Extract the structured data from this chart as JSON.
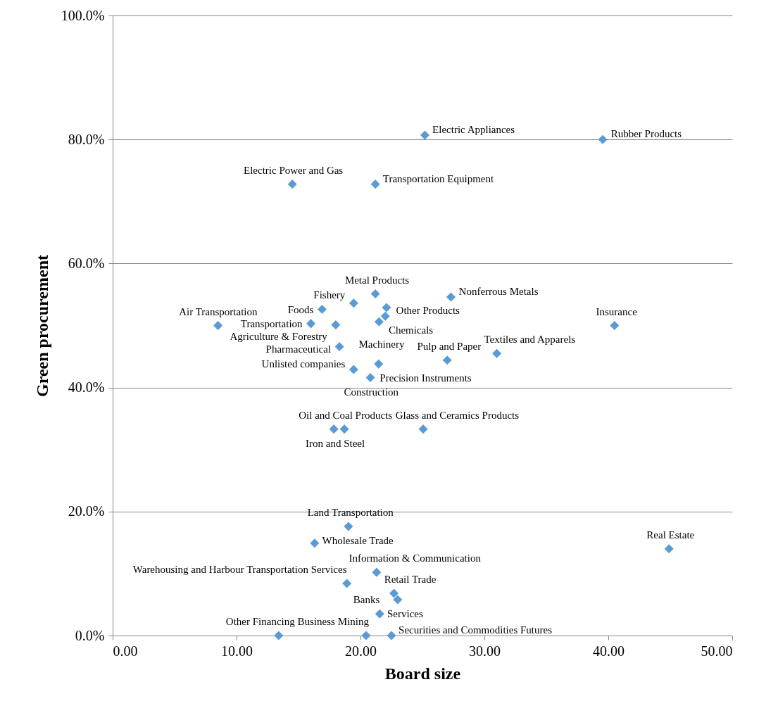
{
  "chart_data": {
    "type": "scatter",
    "xlabel": "Board size",
    "ylabel": "Green procurement",
    "x": [
      25.2,
      39.55,
      14.5,
      21.2,
      21.2,
      27.3,
      19.45,
      22.1,
      16.9,
      22.0,
      21.5,
      8.5,
      18.0,
      16.0,
      18.3,
      21.46,
      19.45,
      27.0,
      31.0,
      20.8,
      40.5,
      18.7,
      17.85,
      25.06,
      19.03,
      16.3,
      44.9,
      18.9,
      21.3,
      22.7,
      23.0,
      21.55,
      22.5,
      13.4,
      20.45
    ],
    "series": [
      {
        "color": "#5b9bd5",
        "values": [
          80.7,
          80.0,
          72.8,
          72.8,
          55.1,
          54.6,
          53.6,
          52.9,
          52.6,
          51.5,
          50.6,
          50.0,
          50.1,
          50.3,
          46.6,
          43.8,
          42.9,
          44.4,
          45.5,
          41.6,
          50.0,
          33.3,
          33.3,
          33.3,
          17.6,
          14.9,
          14.0,
          8.4,
          10.2,
          6.8,
          5.8,
          3.5,
          0.0,
          0.0,
          0.0
        ]
      }
    ],
    "annotations": [
      {
        "text": "Electric Appliances",
        "x": 25.2,
        "y": 80.7
      },
      {
        "text": "Rubber Products",
        "x": 39.55,
        "y": 80.0
      },
      {
        "text": "Electric Power and Gas",
        "x": 14.5,
        "y": 72.8
      },
      {
        "text": "Transportation Equipment",
        "x": 21.2,
        "y": 72.8
      },
      {
        "text": "Metal Products",
        "x": 21.2,
        "y": 55.1
      },
      {
        "text": "Nonferrous Metals",
        "x": 27.3,
        "y": 54.6
      },
      {
        "text": "Fishery",
        "x": 19.45,
        "y": 53.6
      },
      {
        "text": "Other Products",
        "x": 22.1,
        "y": 52.9
      },
      {
        "text": "Foods",
        "x": 16.9,
        "y": 52.6
      },
      {
        "text": "Chemicals",
        "x": 22.0,
        "y": 51.5
      },
      {
        "text": "Machinery",
        "x": 21.5,
        "y": 50.6
      },
      {
        "text": "Air Transportation",
        "x": 8.5,
        "y": 50.0
      },
      {
        "text": "Agriculture & Forestry",
        "x": 18.0,
        "y": 50.1
      },
      {
        "text": "Transportation",
        "x": 16.0,
        "y": 50.3
      },
      {
        "text": "Pharmaceutical",
        "x": 18.3,
        "y": 46.6
      },
      {
        "text": "Precision Instruments",
        "x": 21.46,
        "y": 43.8
      },
      {
        "text": "Unlisted companies",
        "x": 19.45,
        "y": 42.9
      },
      {
        "text": "Pulp and Paper",
        "x": 27.0,
        "y": 44.4
      },
      {
        "text": "Textiles and Apparels",
        "x": 31.0,
        "y": 45.5
      },
      {
        "text": "Construction",
        "x": 20.8,
        "y": 41.6
      },
      {
        "text": "Insurance",
        "x": 40.5,
        "y": 50.0
      },
      {
        "text": "Oil and Coal Products",
        "x": 18.7,
        "y": 33.3
      },
      {
        "text": "Iron and Steel",
        "x": 17.85,
        "y": 33.3
      },
      {
        "text": "Glass and Ceramics Products",
        "x": 25.06,
        "y": 33.3
      },
      {
        "text": "Land Transportation",
        "x": 19.03,
        "y": 17.6
      },
      {
        "text": "Wholesale Trade",
        "x": 16.3,
        "y": 14.9
      },
      {
        "text": "Real Estate",
        "x": 44.9,
        "y": 14.0
      },
      {
        "text": "Warehousing and Harbour Transportation Services",
        "x": 18.9,
        "y": 8.4
      },
      {
        "text": "Information & Communication",
        "x": 21.3,
        "y": 10.2
      },
      {
        "text": "Retail Trade",
        "x": 22.7,
        "y": 6.8
      },
      {
        "text": "Services",
        "x": 23.0,
        "y": 5.8
      },
      {
        "text": "Banks",
        "x": 21.55,
        "y": 3.5
      },
      {
        "text": "Securities and Commodities Futures",
        "x": 22.5,
        "y": 0.0
      },
      {
        "text": "Other Financing Business",
        "x": 13.4,
        "y": 0.0
      },
      {
        "text": "Mining",
        "x": 20.45,
        "y": 0.0
      }
    ],
    "xlim": [
      0,
      50
    ],
    "xticks": [
      {
        "value": 0,
        "label": "0.00"
      },
      {
        "value": 10,
        "label": "10.00"
      },
      {
        "value": 20,
        "label": "20.00"
      },
      {
        "value": 30,
        "label": "30.00"
      },
      {
        "value": 40,
        "label": "40.00"
      },
      {
        "value": 50,
        "label": "50.00"
      }
    ],
    "ylim": [
      0,
      100
    ],
    "yticks": [
      {
        "value": 0,
        "label": "0.0%"
      },
      {
        "value": 20,
        "label": "20.0%"
      },
      {
        "value": 40,
        "label": "40.0%"
      },
      {
        "value": 60,
        "label": "60.0%"
      },
      {
        "value": 80,
        "label": "80.0%"
      },
      {
        "value": 100,
        "label": "100.0%"
      }
    ],
    "grid": "y",
    "marker": "diamond",
    "legend": false
  }
}
